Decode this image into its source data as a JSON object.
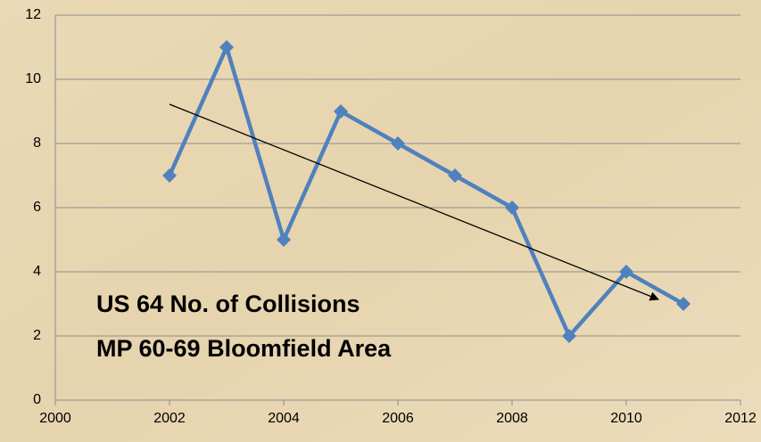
{
  "chart_data": {
    "type": "line",
    "x": [
      2002,
      2003,
      2004,
      2005,
      2006,
      2007,
      2008,
      2009,
      2010,
      2011
    ],
    "series": [
      {
        "color": "#4f81bd",
        "values": [
          7,
          11,
          5,
          9,
          8,
          7,
          6,
          2,
          4,
          3
        ]
      }
    ],
    "xlim": [
      2000,
      2012
    ],
    "xticks": [
      2000,
      2002,
      2004,
      2006,
      2008,
      2010,
      2012
    ],
    "ylim": [
      0,
      12
    ],
    "yticks": [
      0,
      2,
      4,
      6,
      8,
      10,
      12
    ],
    "grid": true,
    "annotations": [
      "US 64 No. of Collisions",
      "MP 60-69 Bloomfield Area"
    ]
  }
}
